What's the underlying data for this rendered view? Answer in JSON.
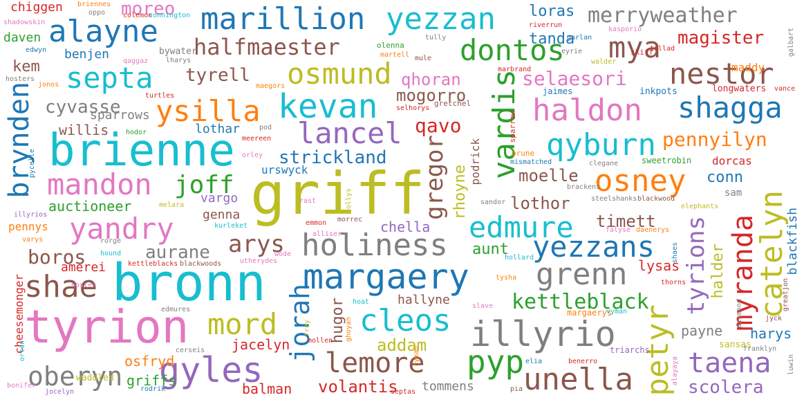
{
  "words": {
    "griff": "griff",
    "bronn": "bronn",
    "brienne": "brienne",
    "tyrion": "tyrion",
    "margaery": "margaery",
    "illyrio": "illyrio",
    "alayne": "alayne",
    "marillion": "marillion",
    "yezzan": "yezzan",
    "holiness": "holiness",
    "kevan": "kevan",
    "lancel": "lancel",
    "haldon": "haldon",
    "shagga": "shagga",
    "nestor": "nestor",
    "septa": "septa",
    "ysilla": "ysilla",
    "osmund": "osmund",
    "mandon": "mandon",
    "yandry": "yandry",
    "shae": "shae",
    "mord": "mord",
    "cleos": "cleos",
    "pyp": "pyp",
    "unella": "unella",
    "lemore": "lemore",
    "oberyn": "oberyn",
    "gyles": "gyles",
    "taena": "taena",
    "edmure": "edmure",
    "yezzans": "yezzans",
    "grenn": "grenn",
    "osney": "osney",
    "qyburn": "qyburn",
    "dontos": "dontos",
    "mya": "mya",
    "merryweather": "merryweather",
    "halfmaester": "halfmaester",
    "brynden": "brynden",
    "vardis": "vardis",
    "catelyn": "catelyn",
    "myranda": "myranda",
    "petyr": "petyr",
    "jorah": "jorah",
    "tyrions": "tyrions",
    "gregor": "gregor",
    "joff": "joff",
    "arys": "arys",
    "aurane": "aurane",
    "boros": "boros",
    "kettleblack": "kettleblack",
    "strickland": "strickland",
    "pennyilyn": "pennyilyn",
    "moreo": "moreo",
    "magister": "magister",
    "selaesori": "selaesori",
    "qhoran": "qhoran",
    "mogorro": "mogorro",
    "qavo": "qavo",
    "tyrell": "tyrell",
    "cyvasse": "cyvasse",
    "sparrows": "sparrows",
    "willis": "willis",
    "auctioneer": "auctioneer",
    "lothor": "lothor",
    "moelle": "moelle",
    "conn": "conn",
    "timett": "timett",
    "scolera": "scolera",
    "volantis": "volantis",
    "addam": "addam",
    "hugor": "hugor",
    "hallyne": "hallyne",
    "aunt": "aunt",
    "chella": "chella",
    "jacelyn": "jacelyn",
    "osfryd": "osfryd",
    "griffs": "griffs",
    "balman": "balman",
    "tommens": "tommens",
    "halder": "halder",
    "payne": "payne",
    "harys": "harys",
    "lysas": "lysas",
    "blackfish": "blackfish",
    "rhoyne": "rhoyne",
    "podrick": "podrick",
    "vargo": "vargo",
    "genna": "genna",
    "amerei": "amerei",
    "cheesemonger": "cheesemonger",
    "pennys": "pennys",
    "urswyck": "urswyck",
    "lothar": "lothar",
    "tanda": "tanda",
    "loras": "loras",
    "maddy": "maddy",
    "kem": "kem",
    "benjen": "benjen",
    "daven": "daven",
    "chiggen": "chiggen",
    "bywater": "bywater",
    "dorcas": "dorcas",
    "sam": "sam",
    "sansas": "sansas",
    "sweetrobin": "sweetrobin",
    "waddled": "waddled",
    "margaerys": "margaerys",
    "inkpots": "inkpots",
    "longwaters": "longwaters",
    "jaimes": "jaimes",
    "skiff": "skiff",
    "gretchel": "gretchel",
    "selhorys": "selhorys",
    "pycelle": "pycelle",
    "hodor": "hodor",
    "meereen": "meereen",
    "pod": "pod",
    "orley": "orley",
    "jonos": "jonos",
    "turtles": "turtles",
    "maegors": "maegors",
    "lharys": "lharys",
    "qaggaz": "qaggaz",
    "edwyn": "edwyn",
    "olenna": "olenna",
    "martell": "martell",
    "mule": "mule",
    "marbrand": "marbrand",
    "eyrie": "eyrie",
    "walder": "walder",
    "tallad": "tallad",
    "kasporio": "kasporio",
    "galbart": "galbart",
    "riverrun": "riverrun",
    "garlan": "garlan",
    "tully": "tully",
    "oppo": "oppo",
    "briennes": "briennes",
    "colemon": "colemon",
    "connington": "connington",
    "shadowskin": "shadowskin",
    "hosters": "hosters",
    "vance": "vance",
    "sparrow": "sparrow",
    "brune": "brune",
    "mismatched": "mismatched",
    "clegane": "clegane",
    "brackens": "brackens",
    "sandor": "sandor",
    "steelshanks": "steelshanks",
    "blackwood": "blackwood",
    "elephants": "elephants",
    "rast": "rast",
    "lollys": "lollys",
    "melara": "melara",
    "illyrios": "illyrios",
    "kurleket": "kurleket",
    "emmon": "emmon",
    "morrec": "morrec",
    "alliser": "alliser",
    "falyse": "falyse",
    "daenerys": "daenerys",
    "varys": "varys",
    "rorge": "rorge",
    "hound": "hound",
    "kettleblacks": "kettleblacks",
    "blackwoods": "blackwoods",
    "utherydes": "utherydes",
    "wode": "wode",
    "hollard": "hollard",
    "shaes": "shaes",
    "tysha": "tysha",
    "thorns": "thorns",
    "hoster": "hoster",
    "edmures": "edmures",
    "hoat": "hoat",
    "frey": "frey",
    "ghoyan": "ghoyan",
    "mollen": "mollen",
    "slave": "slave",
    "vyman": "vyman",
    "greatjon": "greatjon",
    "desmond": "desmond",
    "jyck": "jyck",
    "franklyn": "franklyn",
    "orton": "orton",
    "cerseis": "cerseis",
    "ryman": "ryman",
    "triarchs": "triarchs",
    "elia": "elia",
    "benerro": "benerro",
    "alayaya": "alayaya",
    "luwin": "luwin",
    "bonifer": "bonifer",
    "jocelyn": "jocelyn",
    "rodrik": "rodrik",
    "septas": "septas",
    "pia": "pia"
  },
  "palette": {
    "blue": "#1f77b4",
    "orange": "#ff7f0e",
    "green": "#2ca02c",
    "red": "#d62728",
    "purple": "#9467bd",
    "brown": "#8c564b",
    "pink": "#e377c2",
    "gray": "#7f7f7f",
    "olive": "#bcbd22",
    "cyan": "#17becf"
  }
}
